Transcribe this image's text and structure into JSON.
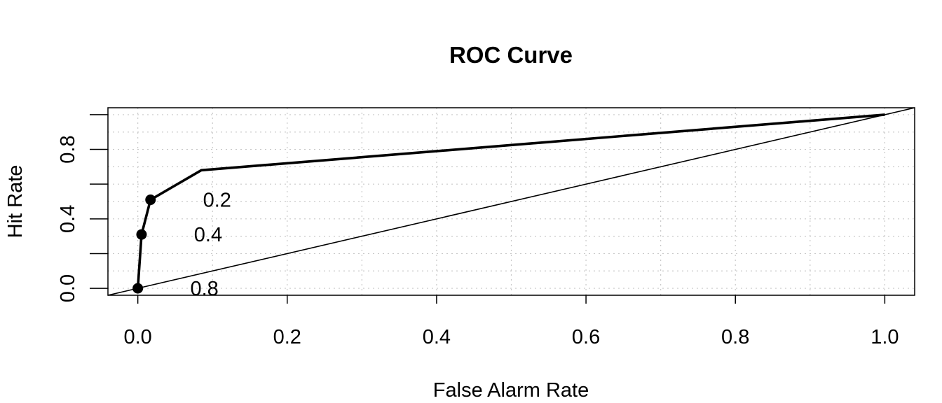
{
  "chart_data": {
    "type": "line",
    "title": "ROC Curve",
    "xlabel": "False Alarm Rate",
    "ylabel": "Hit Rate",
    "xlim": [
      -0.04,
      1.04
    ],
    "ylim": [
      -0.04,
      1.04
    ],
    "x_ticks": [
      0.0,
      0.2,
      0.4,
      0.6,
      0.8,
      1.0
    ],
    "x_tick_labels": [
      "0.0",
      "0.2",
      "0.4",
      "0.6",
      "0.8",
      "1.0"
    ],
    "y_ticks": [
      0.0,
      0.2,
      0.4,
      0.6,
      0.8,
      1.0
    ],
    "y_tick_labels": [
      "0.0",
      "",
      "0.4",
      "",
      "0.8",
      ""
    ],
    "grid": true,
    "series": [
      {
        "x": [
          0.0,
          0.005,
          0.017,
          0.085,
          1.0
        ],
        "y": [
          0.0,
          0.31,
          0.51,
          0.68,
          1.0
        ]
      }
    ],
    "reference_line": {
      "x": [
        -0.04,
        1.04
      ],
      "y": [
        -0.04,
        1.04
      ]
    },
    "threshold_points": [
      {
        "x": 0.0,
        "y": 0.0,
        "label": "0.8"
      },
      {
        "x": 0.005,
        "y": 0.31,
        "label": "0.4"
      },
      {
        "x": 0.017,
        "y": 0.51,
        "label": "0.2"
      }
    ],
    "colors": {
      "line": "#000000",
      "grid": "#c8c8c8"
    }
  }
}
